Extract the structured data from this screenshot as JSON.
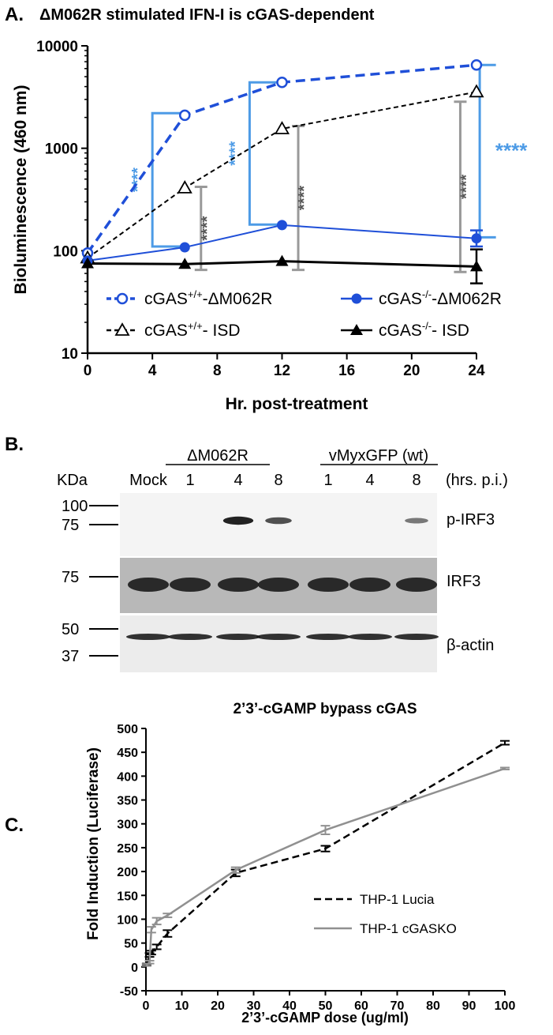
{
  "panel_a": {
    "label": "A.",
    "title": "ΔM062R stimulated IFN-I is cGAS-dependent",
    "ylabel": "Bioluminescence (460 nm)",
    "xlabel": "Hr. post-treatment",
    "legend": [
      {
        "base": "cGAS",
        "sup": "+/+",
        "rest": "-ΔM062R"
      },
      {
        "base": "cGAS",
        "sup": "-/-",
        "rest": "-ΔM062R"
      },
      {
        "base": "cGAS",
        "sup": "+/+",
        "rest": "- ISD"
      },
      {
        "base": "cGAS",
        "sup": "-/-",
        "rest": "- ISD"
      }
    ],
    "significance": "****",
    "colors": {
      "blue": "#1f4fd8",
      "lightblue": "#4d9be6",
      "gray": "#999999",
      "black": "#000000"
    }
  },
  "panel_b": {
    "label": "B.",
    "group1": "ΔM062R",
    "group2": "vMyxGFP (wt)",
    "kda_label": "KDa",
    "lane_labels": [
      "Mock",
      "1",
      "4",
      "8",
      "1",
      "4",
      "8"
    ],
    "hpi_label": "(hrs. p.i.)",
    "blots": [
      {
        "name": "p-IRF3",
        "markers": [
          "100",
          "75"
        ]
      },
      {
        "name": "IRF3",
        "markers": [
          "75"
        ]
      },
      {
        "name": "β-actin",
        "markers": [
          "50",
          "37"
        ]
      }
    ],
    "band_intensity": {
      "p_irf3": [
        0,
        0,
        0.9,
        0.6,
        0,
        0,
        0.35
      ],
      "irf3": [
        1,
        1,
        1,
        1,
        1,
        1,
        1
      ],
      "actin": [
        1,
        1,
        1,
        1,
        1,
        1,
        1
      ]
    }
  },
  "panel_c": {
    "label": "C.",
    "title": "2’3’-cGAMP bypass cGAS",
    "ylabel": "Fold Induction (Luciferase)",
    "xlabel": "2’3’-cGAMP dose (ug/ml)"
  },
  "chart_data": [
    {
      "type": "line",
      "panel": "A",
      "title": "ΔM062R stimulated IFN-I is cGAS-dependent",
      "xlabel": "Hr. post-treatment",
      "ylabel": "Bioluminescence (460 nm)",
      "yscale": "log",
      "xlim": [
        0,
        24
      ],
      "ylim": [
        10,
        10000
      ],
      "xticks": [
        0,
        4,
        8,
        12,
        16,
        20,
        24
      ],
      "yticks": [
        10,
        100,
        1000,
        10000
      ],
      "x": [
        0,
        6,
        12,
        24
      ],
      "series": [
        {
          "name": "cGAS+/+-ΔM062R",
          "values": [
            95,
            2100,
            4400,
            6500
          ],
          "color": "#1f4fd8",
          "style": "dashed",
          "marker": "open-circle"
        },
        {
          "name": "cGAS+/+- ISD",
          "values": [
            85,
            410,
            1550,
            3550
          ],
          "color": "#000000",
          "style": "dashed",
          "marker": "open-triangle"
        },
        {
          "name": "cGAS-/--ΔM062R",
          "values": [
            80,
            108,
            178,
            132
          ],
          "color": "#1f4fd8",
          "style": "solid",
          "marker": "filled-circle",
          "err_high_24": 158,
          "err_low_24": 110
        },
        {
          "name": "cGAS-/-- ISD",
          "values": [
            75,
            74,
            79,
            70
          ],
          "color": "#000000",
          "style": "solid",
          "marker": "filled-triangle",
          "err_high_24": 103,
          "err_low_24": 48
        }
      ],
      "annotations": [
        {
          "text": "****",
          "x1": 4,
          "x2": 6,
          "y_low": 110,
          "y_high": 2200,
          "color": "#4d9be6"
        },
        {
          "text": "****",
          "x1": 10,
          "x2": 12,
          "y_low": 180,
          "y_high": 4400,
          "color": "#4d9be6"
        },
        {
          "text": "****",
          "x1": 24.2,
          "x2": 25.2,
          "y_low": 135,
          "y_high": 6500,
          "color": "#4d9be6"
        },
        {
          "text": "****",
          "x": 7,
          "y_low": 65,
          "y_high": 420,
          "color": "#999999"
        },
        {
          "text": "****",
          "x": 13,
          "y_low": 65,
          "y_high": 1650,
          "color": "#999999"
        },
        {
          "text": "****",
          "x": 23,
          "y_low": 62,
          "y_high": 2850,
          "color": "#999999"
        }
      ]
    },
    {
      "type": "line",
      "panel": "C",
      "title": "2’3’-cGAMP bypass cGAS",
      "xlabel": "2’3’-cGAMP dose (ug/ml)",
      "ylabel": "Fold Induction (Luciferase)",
      "xlim": [
        0,
        100
      ],
      "ylim": [
        -50,
        500
      ],
      "xticks": [
        0,
        10,
        20,
        30,
        40,
        50,
        60,
        70,
        80,
        90,
        100
      ],
      "yticks": [
        -50,
        0,
        50,
        100,
        150,
        200,
        250,
        300,
        350,
        400,
        450,
        500
      ],
      "legend_position": "right",
      "series": [
        {
          "name": "THP-1 Lucia",
          "color": "#000000",
          "style": "dashed",
          "x": [
            0.2,
            1,
            1.5,
            3,
            6,
            25,
            50,
            100
          ],
          "values": [
            5,
            25,
            30,
            42,
            70,
            197,
            248,
            470
          ],
          "err": [
            2,
            4,
            4,
            5,
            7,
            7,
            6,
            4
          ]
        },
        {
          "name": "THP-1 cGASKO",
          "color": "#909090",
          "style": "solid",
          "x": [
            0.2,
            1,
            1.5,
            3,
            6,
            25,
            50,
            100
          ],
          "values": [
            4,
            10,
            78,
            96,
            108,
            203,
            287,
            416
          ],
          "err": [
            2,
            3,
            6,
            7,
            4,
            6,
            9,
            2
          ]
        }
      ]
    }
  ]
}
